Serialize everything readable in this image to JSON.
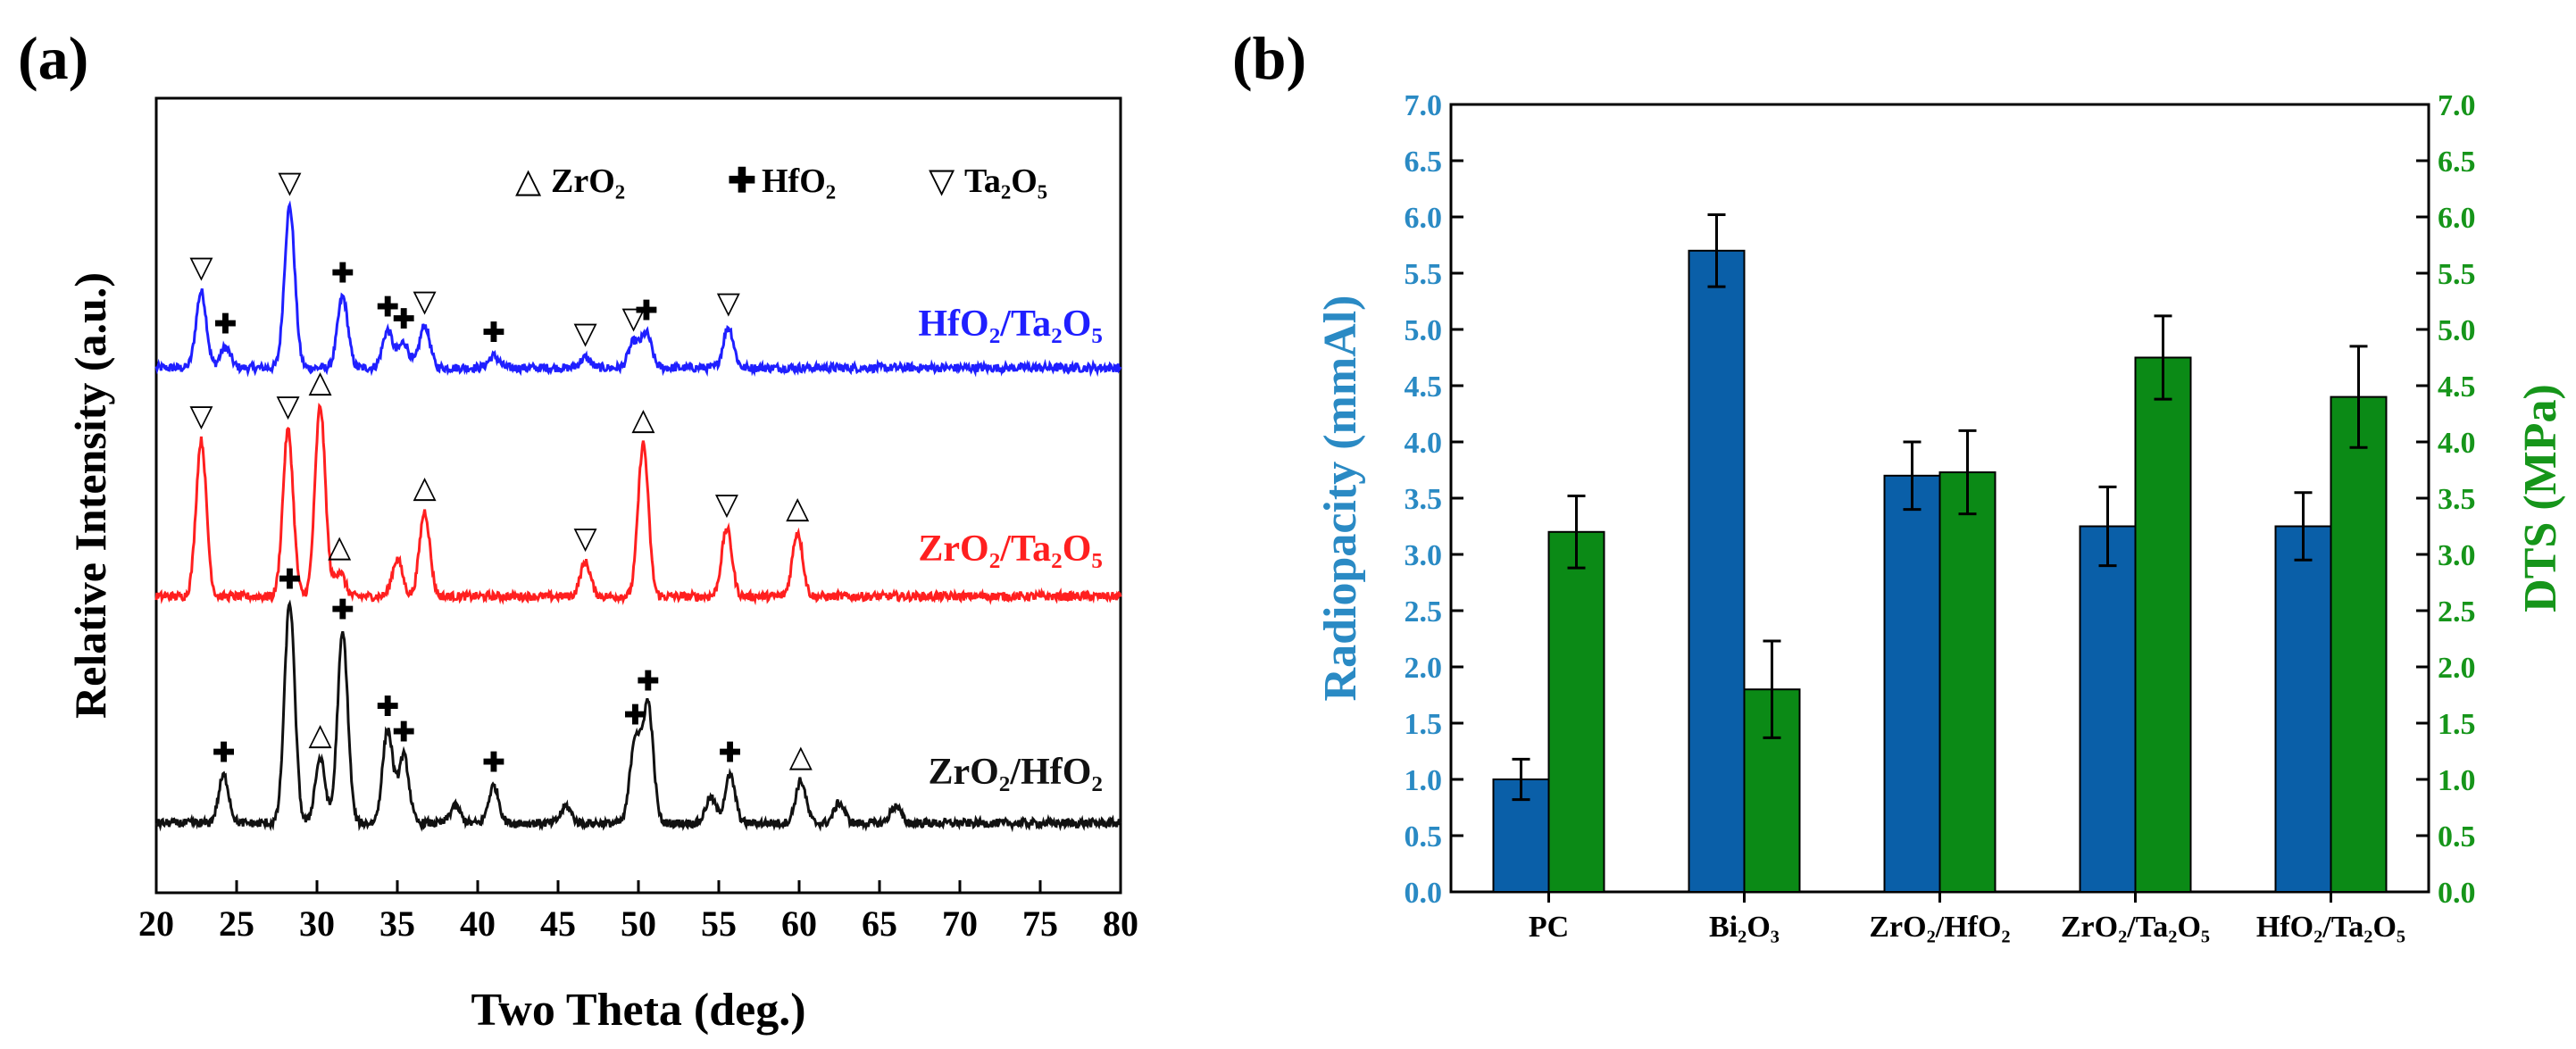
{
  "panel_a": {
    "panel_label": "(a)",
    "legend": [
      {
        "symbol": "△",
        "text": "ZrO₂"
      },
      {
        "symbol": "✚",
        "text": "HfO₂"
      },
      {
        "symbol": "▽",
        "text": "Ta₂O₅"
      }
    ],
    "trace_labels": {
      "top": "HfO₂/Ta₂O₅",
      "middle": "ZrO₂/Ta₂O₅",
      "bottom": "ZrO₂/HfO₂"
    }
  },
  "panel_b": {
    "panel_label": "(b)"
  },
  "colors": {
    "blue_trace": "#1f1fff",
    "red_trace": "#ff1f1f",
    "black_trace": "#111111",
    "radiopacity_bar": "#0a5fa8",
    "dts_bar": "#0b8a16",
    "radiopacity_axis": "#2a8ac4",
    "dts_axis": "#16951a"
  },
  "chart_data": [
    {
      "type": "line",
      "xlabel": "Two Theta (deg.)",
      "ylabel": "Relative Intensity (a.u.)",
      "xlim": [
        20,
        80
      ],
      "xticks": [
        20,
        25,
        30,
        35,
        40,
        45,
        50,
        55,
        60,
        65,
        70,
        75,
        80
      ],
      "grid": false,
      "series": [
        {
          "name": "HfO₂/Ta₂O₅",
          "color": "blue",
          "peaks": [
            {
              "x": 22.8,
              "height": 0.45,
              "marker": "▽"
            },
            {
              "x": 24.3,
              "height": 0.12,
              "marker": "✚"
            },
            {
              "x": 28.3,
              "height": 0.95,
              "marker": "▽"
            },
            {
              "x": 31.6,
              "height": 0.42,
              "marker": "✚"
            },
            {
              "x": 34.4,
              "height": 0.22,
              "marker": "✚"
            },
            {
              "x": 35.4,
              "height": 0.15,
              "marker": "✚"
            },
            {
              "x": 36.7,
              "height": 0.25,
              "marker": "▽"
            },
            {
              "x": 41.0,
              "height": 0.07,
              "marker": "✚"
            },
            {
              "x": 46.7,
              "height": 0.06,
              "marker": "▽"
            },
            {
              "x": 49.7,
              "height": 0.15,
              "marker": "▽"
            },
            {
              "x": 50.5,
              "height": 0.2,
              "marker": "✚"
            },
            {
              "x": 55.6,
              "height": 0.24,
              "marker": "▽"
            }
          ]
        },
        {
          "name": "ZrO₂/Ta₂O₅",
          "color": "red",
          "peaks": [
            {
              "x": 22.8,
              "height": 0.92,
              "marker": "▽"
            },
            {
              "x": 28.2,
              "height": 0.98,
              "marker": "▽"
            },
            {
              "x": 30.2,
              "height": 1.12,
              "marker": "△"
            },
            {
              "x": 31.4,
              "height": 0.15,
              "marker": "△"
            },
            {
              "x": 35.0,
              "height": 0.22
            },
            {
              "x": 36.7,
              "height": 0.5,
              "marker": "△"
            },
            {
              "x": 46.7,
              "height": 0.2,
              "marker": "▽"
            },
            {
              "x": 50.3,
              "height": 0.9,
              "marker": "△"
            },
            {
              "x": 55.5,
              "height": 0.4,
              "marker": "▽"
            },
            {
              "x": 59.9,
              "height": 0.38,
              "marker": "△"
            }
          ]
        },
        {
          "name": "ZrO₂/HfO₂",
          "color": "black",
          "peaks": [
            {
              "x": 24.2,
              "height": 0.28,
              "marker": "✚"
            },
            {
              "x": 28.3,
              "height": 1.3,
              "marker": "✚"
            },
            {
              "x": 30.2,
              "height": 0.38,
              "marker": "△"
            },
            {
              "x": 31.6,
              "height": 1.12,
              "marker": "✚"
            },
            {
              "x": 34.4,
              "height": 0.55,
              "marker": "✚"
            },
            {
              "x": 35.4,
              "height": 0.4,
              "marker": "✚"
            },
            {
              "x": 38.6,
              "height": 0.1
            },
            {
              "x": 41.0,
              "height": 0.22,
              "marker": "✚"
            },
            {
              "x": 45.5,
              "height": 0.1
            },
            {
              "x": 49.8,
              "height": 0.5,
              "marker": "✚"
            },
            {
              "x": 50.6,
              "height": 0.7,
              "marker": "✚"
            },
            {
              "x": 54.5,
              "height": 0.15
            },
            {
              "x": 55.7,
              "height": 0.28,
              "marker": "✚"
            },
            {
              "x": 60.1,
              "height": 0.25,
              "marker": "△"
            },
            {
              "x": 62.5,
              "height": 0.12
            },
            {
              "x": 66.0,
              "height": 0.1
            }
          ]
        }
      ]
    },
    {
      "type": "bar",
      "categories": [
        "PC",
        "Bi₂O₃",
        "ZrO₂/HfO₂",
        "ZrO₂/Ta₂O₅",
        "HfO₂/Ta₂O₅"
      ],
      "ylabel": "Radiopacity (mmAl)",
      "y2label": "DTS (MPa)",
      "ylim": [
        0,
        7
      ],
      "y2lim": [
        0,
        7
      ],
      "yticks": [
        "0.0",
        "0.5",
        "1.0",
        "1.5",
        "2.0",
        "2.5",
        "3.0",
        "3.5",
        "4.0",
        "4.5",
        "5.0",
        "5.5",
        "6.0",
        "6.5",
        "7.0"
      ],
      "grid": false,
      "series": [
        {
          "axis": "left",
          "values": [
            1.0,
            5.7,
            3.7,
            3.25,
            3.25
          ],
          "errors": [
            0.18,
            0.32,
            0.3,
            0.35,
            0.3
          ]
        },
        {
          "axis": "right",
          "values": [
            3.2,
            1.8,
            3.73,
            4.75,
            4.4
          ],
          "errors": [
            0.32,
            0.43,
            0.37,
            0.37,
            0.45
          ]
        }
      ]
    }
  ]
}
